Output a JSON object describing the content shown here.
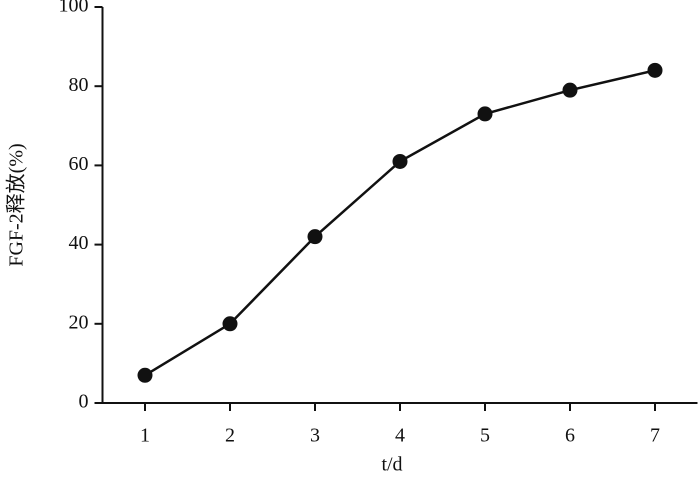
{
  "chart_data": {
    "type": "line",
    "x_label": "t/d",
    "y_label": "FGF-2释放(%)",
    "x": [
      1,
      2,
      3,
      4,
      5,
      6,
      7
    ],
    "series": [
      {
        "color": "#111111",
        "values": [
          7,
          20,
          42,
          61,
          73,
          79,
          84
        ]
      }
    ],
    "xlim": [
      0.5,
      7.5
    ],
    "xticks": [
      1,
      2,
      3,
      4,
      5,
      6,
      7
    ],
    "ylim": [
      0,
      100
    ],
    "yticks": [
      0,
      20,
      40,
      60,
      80,
      100
    ],
    "grid": false
  }
}
